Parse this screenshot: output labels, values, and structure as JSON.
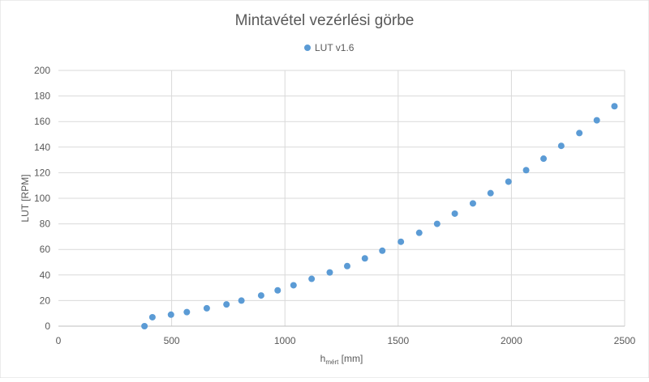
{
  "chart_data": {
    "type": "scatter",
    "title": "Mintavétel vezérlési görbe",
    "xlabel_main": "h",
    "xlabel_sub": "mért",
    "xlabel_unit": " [mm]",
    "ylabel": "LUT [RPM]",
    "xlim": [
      0,
      2500
    ],
    "ylim": [
      0,
      200
    ],
    "x_ticks": [
      0,
      500,
      1000,
      1500,
      2000,
      2500
    ],
    "y_ticks": [
      0,
      20,
      40,
      60,
      80,
      100,
      120,
      140,
      160,
      180,
      200
    ],
    "grid": true,
    "legend_position": "top",
    "series": [
      {
        "name": "LUT v1.6",
        "color": "#5b9bd5",
        "x": [
          380,
          415,
          497,
          567,
          655,
          742,
          808,
          895,
          968,
          1038,
          1118,
          1198,
          1275,
          1353,
          1430,
          1512,
          1593,
          1672,
          1750,
          1830,
          1908,
          1987,
          2065,
          2142,
          2220,
          2300,
          2377,
          2455
        ],
        "y": [
          0,
          7,
          9,
          11,
          14,
          17,
          20,
          24,
          28,
          32,
          37,
          42,
          47,
          53,
          59,
          66,
          73,
          80,
          88,
          96,
          104,
          113,
          122,
          131,
          141,
          151,
          161,
          172
        ]
      }
    ]
  }
}
